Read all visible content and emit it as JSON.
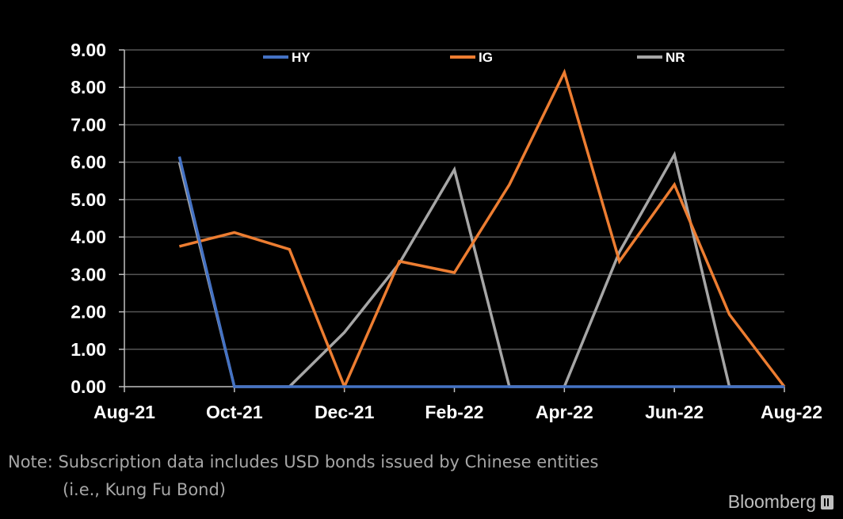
{
  "chart_data": {
    "type": "line",
    "categories": [
      "Sep-21",
      "Oct-21",
      "Nov-21",
      "Dec-21",
      "Jan-22",
      "Feb-22",
      "Mar-22",
      "Apr-22",
      "May-22",
      "Jun-22",
      "Jul-22",
      "Aug-22"
    ],
    "x_tick_labels": [
      "Aug-21",
      "Oct-21",
      "Dec-21",
      "Feb-22",
      "Apr-22",
      "Jun-22",
      "Aug-22"
    ],
    "y_tick_labels": [
      "0.00",
      "1.00",
      "2.00",
      "3.00",
      "4.00",
      "5.00",
      "6.00",
      "7.00",
      "8.00",
      "9.00"
    ],
    "ylim": [
      0,
      9
    ],
    "grid": true,
    "legend_position": "top",
    "series": [
      {
        "name": "HY",
        "color": "#4472c4",
        "values": [
          6.15,
          0,
          0,
          0,
          0,
          0,
          0,
          0,
          0,
          0,
          0,
          0
        ]
      },
      {
        "name": "IG",
        "color": "#ed7d31",
        "values": [
          3.75,
          4.12,
          3.67,
          0,
          3.35,
          3.05,
          5.4,
          8.4,
          3.35,
          5.4,
          1.93,
          0
        ]
      },
      {
        "name": "NR",
        "color": "#a6a6a6",
        "values": [
          6.0,
          0,
          0,
          1.45,
          3.3,
          5.8,
          0,
          0,
          3.6,
          6.2,
          0,
          0
        ]
      }
    ]
  },
  "footer": {
    "note_line1": "Note: Subscription data includes USD bonds issued by Chinese entities",
    "note_line2": "(i.e., Kung Fu Bond)",
    "brand": "Bloomberg"
  }
}
